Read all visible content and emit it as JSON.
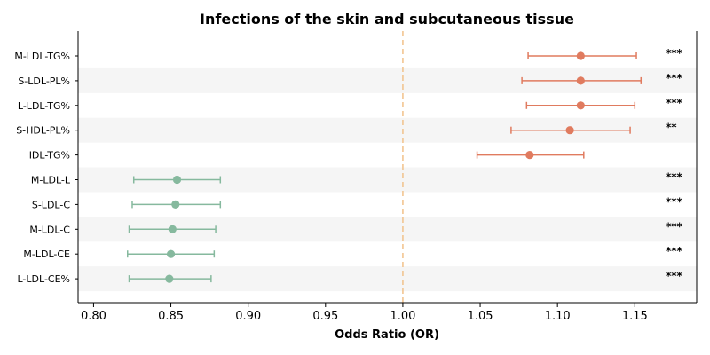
{
  "chart_data": {
    "type": "scatter",
    "subtype": "forest-plot",
    "title": "Infections of the skin and subcutaneous tissue",
    "xlabel": "Odds Ratio (OR)",
    "ylabel": "",
    "xlim": [
      0.79,
      1.19
    ],
    "xticks": [
      "0.80",
      "0.85",
      "0.90",
      "0.95",
      "1.00",
      "1.05",
      "1.10",
      "1.15"
    ],
    "xtick_values": [
      0.8,
      0.85,
      0.9,
      0.95,
      1.0,
      1.05,
      1.1,
      1.15
    ],
    "reference_line": 1.0,
    "grid": false,
    "alternating_row_shading": true,
    "colors": {
      "positive": "#e07b5f",
      "negative": "#86b99e",
      "reference": "#f2c591",
      "row_shade": "#f5f5f5"
    },
    "rows": [
      {
        "label": "M-LDL-TG%",
        "or": 1.115,
        "lower": 1.081,
        "upper": 1.151,
        "sig": "***"
      },
      {
        "label": "S-LDL-PL%",
        "or": 1.115,
        "lower": 1.077,
        "upper": 1.154,
        "sig": "***"
      },
      {
        "label": "L-LDL-TG%",
        "or": 1.115,
        "lower": 1.08,
        "upper": 1.15,
        "sig": "***"
      },
      {
        "label": "S-HDL-PL%",
        "or": 1.108,
        "lower": 1.07,
        "upper": 1.147,
        "sig": "**"
      },
      {
        "label": "IDL-TG%",
        "or": 1.082,
        "lower": 1.048,
        "upper": 1.117,
        "sig": ""
      },
      {
        "label": "M-LDL-L",
        "or": 0.854,
        "lower": 0.826,
        "upper": 0.882,
        "sig": "***"
      },
      {
        "label": "S-LDL-C",
        "or": 0.853,
        "lower": 0.825,
        "upper": 0.882,
        "sig": "***"
      },
      {
        "label": "M-LDL-C",
        "or": 0.851,
        "lower": 0.823,
        "upper": 0.879,
        "sig": "***"
      },
      {
        "label": "M-LDL-CE",
        "or": 0.85,
        "lower": 0.822,
        "upper": 0.878,
        "sig": "***"
      },
      {
        "label": "L-LDL-CE%",
        "or": 0.849,
        "lower": 0.823,
        "upper": 0.876,
        "sig": "***"
      }
    ]
  }
}
